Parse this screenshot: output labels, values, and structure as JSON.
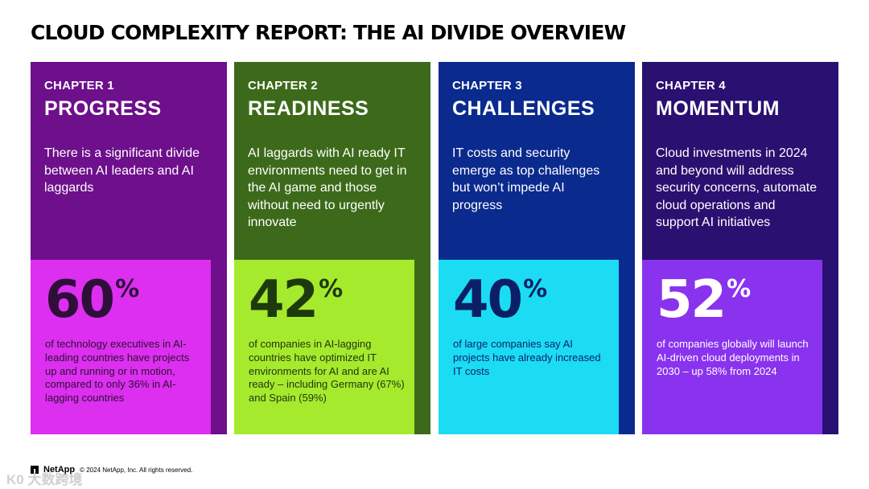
{
  "page": {
    "title": "CLOUD COMPLEXITY REPORT: THE AI DIVIDE OVERVIEW"
  },
  "chapters": [
    {
      "chapter_label": "CHAPTER 1",
      "heading": "PROGRESS",
      "description": "There is a significant divide between AI leaders and AI laggards",
      "stat_number": "60",
      "stat_suffix": "%",
      "stat_text": "of technology executives in AI-leading countries have projects up and running or in motion, compared to only 36% in AI-lagging countries",
      "colors": {
        "card_bg": "#6e0f8b",
        "stat_bg": "#dc2ff0",
        "stat_number": "#2e0f3a",
        "stat_text": "#2b1230"
      }
    },
    {
      "chapter_label": "CHAPTER 2",
      "heading": "READINESS",
      "description": "AI laggards with AI ready IT environments need to get in the AI game and those without need to urgently innovate",
      "stat_number": "42",
      "stat_suffix": "%",
      "stat_text": "of companies in AI-lagging countries have optimized IT environments for AI and are AI ready – including Germany (67%) and Spain (59%)",
      "colors": {
        "card_bg": "#3d6a1a",
        "stat_bg": "#a6ea2d",
        "stat_number": "#1d3a0c",
        "stat_text": "#1f3410"
      }
    },
    {
      "chapter_label": "CHAPTER 3",
      "heading": "CHALLENGES",
      "description": "IT costs and security emerge as top challenges but won’t impede AI progress",
      "stat_number": "40",
      "stat_suffix": "%",
      "stat_text": "of large companies say AI projects have already increased IT costs",
      "colors": {
        "card_bg": "#0b2a8e",
        "stat_bg": "#1bdcf2",
        "stat_number": "#0b1f66",
        "stat_text": "#0b2566"
      }
    },
    {
      "chapter_label": "CHAPTER 4",
      "heading": "MOMENTUM",
      "description": "Cloud investments in 2024 and beyond will address security concerns, automate cloud operations and support AI initiatives",
      "stat_number": "52",
      "stat_suffix": "%",
      "stat_text": "of companies globally will launch AI-driven cloud deployments in 2030 – up 58% from 2024",
      "colors": {
        "card_bg": "#2a1070",
        "stat_bg": "#8a33ee",
        "stat_number": "#ffffff",
        "stat_text": "#ffffff"
      }
    }
  ],
  "footer": {
    "logo_name": "NetApp",
    "copyright": "© 2024 NetApp, Inc. All rights reserved."
  },
  "watermark": {
    "text": "K0 大数跨境"
  }
}
